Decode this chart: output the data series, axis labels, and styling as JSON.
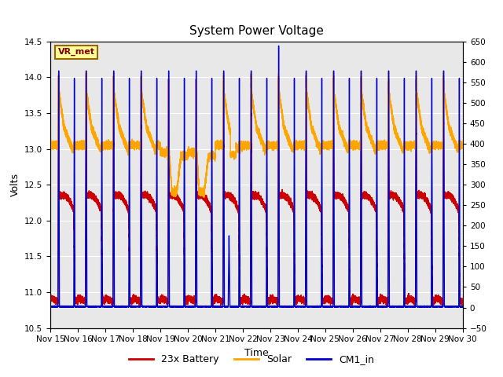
{
  "title": "System Power Voltage",
  "xlabel": "Time",
  "ylabel": "Volts",
  "ylim_left": [
    10.5,
    14.5
  ],
  "ylim_right": [
    -50,
    650
  ],
  "yticks_left": [
    10.5,
    11.0,
    11.5,
    12.0,
    12.5,
    13.0,
    13.5,
    14.0,
    14.5
  ],
  "yticks_right": [
    -50,
    0,
    50,
    100,
    150,
    200,
    250,
    300,
    350,
    400,
    450,
    500,
    550,
    600,
    650
  ],
  "battery_color": "#cc0000",
  "solar_color": "#ffa500",
  "cm1_color": "#0000cc",
  "plot_bg_color": "#e8e8e8",
  "annotation_text": "VR_met",
  "annotation_box_color": "#ffff99",
  "annotation_border_color": "#996600",
  "legend_battery": "23x Battery",
  "legend_solar": "Solar",
  "legend_cm1": "CM1_in",
  "line_width": 1.0,
  "tick_labels": [
    "Nov 15",
    "Nov 16",
    "Nov 17",
    "Nov 18",
    "Nov 19",
    "Nov 20",
    "Nov 21",
    "Nov 22",
    "Nov 23",
    "Nov 24",
    "Nov 25",
    "Nov 26",
    "Nov 27",
    "Nov 28",
    "Nov 29",
    "Nov 30"
  ]
}
